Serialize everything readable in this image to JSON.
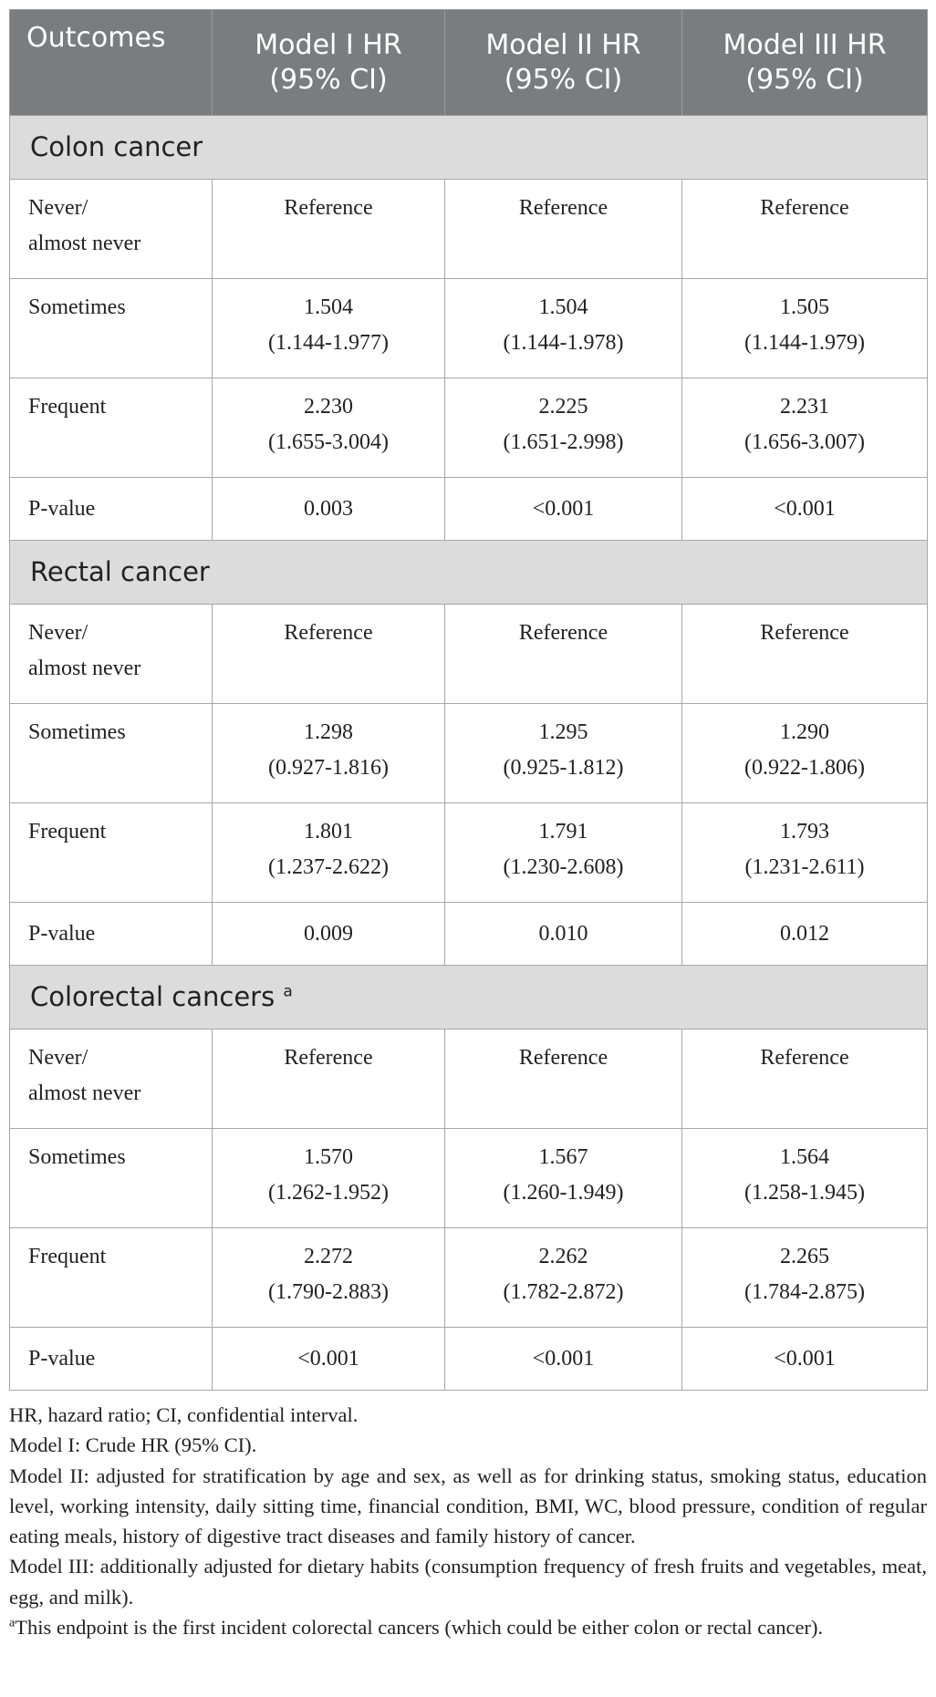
{
  "table": {
    "headers": [
      {
        "line1": "Outcomes",
        "line2": ""
      },
      {
        "line1": "Model I HR",
        "line2": "(95% CI)"
      },
      {
        "line1": "Model II HR",
        "line2": "(95% CI)"
      },
      {
        "line1": "Model III HR",
        "line2": "(95% CI)"
      }
    ],
    "sections": [
      {
        "title": "Colon cancer",
        "superscript": "",
        "rows": [
          {
            "label1": "Never/",
            "label2": "almost never",
            "cells": [
              {
                "hr": "Reference",
                "ci": ""
              },
              {
                "hr": "Reference",
                "ci": ""
              },
              {
                "hr": "Reference",
                "ci": ""
              }
            ]
          },
          {
            "label1": "Sometimes",
            "label2": "",
            "cells": [
              {
                "hr": "1.504",
                "ci": "(1.144-1.977)"
              },
              {
                "hr": "1.504",
                "ci": "(1.144-1.978)"
              },
              {
                "hr": "1.505",
                "ci": "(1.144-1.979)"
              }
            ]
          },
          {
            "label1": "Frequent",
            "label2": "",
            "cells": [
              {
                "hr": "2.230",
                "ci": "(1.655-3.004)"
              },
              {
                "hr": "2.225",
                "ci": "(1.651-2.998)"
              },
              {
                "hr": "2.231",
                "ci": "(1.656-3.007)"
              }
            ]
          },
          {
            "label1": "P-value",
            "label2": "",
            "cells": [
              {
                "hr": "0.003",
                "ci": ""
              },
              {
                "hr": "<0.001",
                "ci": ""
              },
              {
                "hr": "<0.001",
                "ci": ""
              }
            ]
          }
        ]
      },
      {
        "title": "Rectal cancer",
        "superscript": "",
        "rows": [
          {
            "label1": "Never/",
            "label2": "almost never",
            "cells": [
              {
                "hr": "Reference",
                "ci": ""
              },
              {
                "hr": "Reference",
                "ci": ""
              },
              {
                "hr": "Reference",
                "ci": ""
              }
            ]
          },
          {
            "label1": "Sometimes",
            "label2": "",
            "cells": [
              {
                "hr": "1.298",
                "ci": "(0.927-1.816)"
              },
              {
                "hr": "1.295",
                "ci": "(0.925-1.812)"
              },
              {
                "hr": "1.290",
                "ci": "(0.922-1.806)"
              }
            ]
          },
          {
            "label1": "Frequent",
            "label2": "",
            "cells": [
              {
                "hr": "1.801",
                "ci": "(1.237-2.622)"
              },
              {
                "hr": "1.791",
                "ci": "(1.230-2.608)"
              },
              {
                "hr": "1.793",
                "ci": "(1.231-2.611)"
              }
            ]
          },
          {
            "label1": "P-value",
            "label2": "",
            "cells": [
              {
                "hr": "0.009",
                "ci": ""
              },
              {
                "hr": "0.010",
                "ci": ""
              },
              {
                "hr": "0.012",
                "ci": ""
              }
            ]
          }
        ]
      },
      {
        "title": "Colorectal cancers",
        "superscript": "a",
        "rows": [
          {
            "label1": "Never/",
            "label2": "almost never",
            "cells": [
              {
                "hr": "Reference",
                "ci": ""
              },
              {
                "hr": "Reference",
                "ci": ""
              },
              {
                "hr": "Reference",
                "ci": ""
              }
            ]
          },
          {
            "label1": "Sometimes",
            "label2": "",
            "cells": [
              {
                "hr": "1.570",
                "ci": "(1.262-1.952)"
              },
              {
                "hr": "1.567",
                "ci": "(1.260-1.949)"
              },
              {
                "hr": "1.564",
                "ci": "(1.258-1.945)"
              }
            ]
          },
          {
            "label1": "Frequent",
            "label2": "",
            "cells": [
              {
                "hr": "2.272",
                "ci": "(1.790-2.883)"
              },
              {
                "hr": "2.262",
                "ci": "(1.782-2.872)"
              },
              {
                "hr": "2.265",
                "ci": "(1.784-2.875)"
              }
            ]
          },
          {
            "label1": "P-value",
            "label2": "",
            "cells": [
              {
                "hr": "<0.001",
                "ci": ""
              },
              {
                "hr": "<0.001",
                "ci": ""
              },
              {
                "hr": "<0.001",
                "ci": ""
              }
            ]
          }
        ]
      }
    ]
  },
  "notes": {
    "abbrev": "HR, hazard ratio; CI, confidential interval.",
    "model1": "Model I: Crude HR (95% CI).",
    "model2": "Model II: adjusted for stratification by age and sex, as well as for drinking status, smoking status, education level, working intensity, daily sitting time, financial condition, BMI, WC, blood pressure, condition of regular eating meals, history of digestive tract diseases and family history of cancer.",
    "model3": "Model III: additionally adjusted for dietary habits (consumption frequency of fresh fruits and vegetables, meat, egg, and milk).",
    "footnote_mark": "a",
    "footnote": "This endpoint is the first incident colorectal cancers (which could be either colon or rectal cancer)."
  }
}
